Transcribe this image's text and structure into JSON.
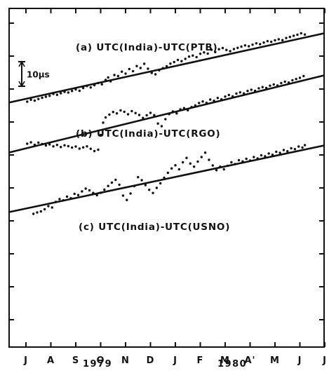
{
  "chart_data": {
    "type": "scatter",
    "x_categories": [
      "J",
      "A",
      "S",
      "O",
      "N",
      "D",
      "J",
      "F",
      "M",
      "A'",
      "M",
      "J",
      "J"
    ],
    "year_labels": [
      "1979",
      "1980"
    ],
    "scale_bar_label": "10μs",
    "scale_bar_value_us": 10,
    "y_unit": "μs",
    "grid": false,
    "series": [
      {
        "name": "(a) UTC(India)-UTC(PTB)",
        "trend_line": {
          "start": 7.5,
          "end": 47.0
        },
        "points": [
          [
            0.05,
            8.0
          ],
          [
            0.2,
            9.1
          ],
          [
            0.35,
            8.6
          ],
          [
            0.5,
            9.5
          ],
          [
            0.65,
            10.2
          ],
          [
            0.8,
            10.8
          ],
          [
            0.95,
            11.3
          ],
          [
            1.1,
            12.4
          ],
          [
            1.25,
            11.9
          ],
          [
            1.4,
            12.8
          ],
          [
            1.55,
            13.6
          ],
          [
            1.7,
            13.2
          ],
          [
            1.85,
            14.1
          ],
          [
            2.0,
            15.0
          ],
          [
            2.15,
            14.2
          ],
          [
            2.3,
            15.8
          ],
          [
            2.45,
            16.9
          ],
          [
            2.6,
            16.1
          ],
          [
            2.75,
            17.4
          ],
          [
            2.9,
            18.6
          ],
          [
            3.05,
            17.9
          ],
          [
            3.2,
            20.4
          ],
          [
            3.3,
            21.8
          ],
          [
            3.4,
            19.6
          ],
          [
            3.55,
            23.2
          ],
          [
            3.7,
            22.6
          ],
          [
            3.85,
            25.1
          ],
          [
            4.0,
            24.0
          ],
          [
            4.15,
            26.6
          ],
          [
            4.3,
            25.4
          ],
          [
            4.45,
            28.3
          ],
          [
            4.6,
            27.2
          ],
          [
            4.75,
            29.6
          ],
          [
            4.9,
            26.8
          ],
          [
            5.05,
            24.4
          ],
          [
            5.2,
            23.6
          ],
          [
            5.35,
            25.9
          ],
          [
            5.5,
            27.1
          ],
          [
            5.65,
            28.2
          ],
          [
            5.8,
            29.7
          ],
          [
            5.95,
            30.6
          ],
          [
            6.1,
            31.8
          ],
          [
            6.25,
            31.1
          ],
          [
            6.4,
            32.4
          ],
          [
            6.55,
            33.7
          ],
          [
            6.7,
            34.3
          ],
          [
            6.85,
            33.4
          ],
          [
            7.0,
            35.3
          ],
          [
            7.15,
            36.1
          ],
          [
            7.3,
            35.4
          ],
          [
            7.45,
            37.6
          ],
          [
            7.6,
            36.3
          ],
          [
            7.75,
            37.9
          ],
          [
            7.9,
            38.6
          ],
          [
            8.05,
            37.5
          ],
          [
            8.2,
            36.8
          ],
          [
            8.35,
            38.0
          ],
          [
            8.5,
            38.7
          ],
          [
            8.65,
            39.4
          ],
          [
            8.8,
            40.1
          ],
          [
            8.95,
            39.6
          ],
          [
            9.1,
            40.5
          ],
          [
            9.25,
            41.3
          ],
          [
            9.4,
            40.8
          ],
          [
            9.55,
            41.7
          ],
          [
            9.7,
            42.5
          ],
          [
            9.85,
            42.1
          ],
          [
            10.0,
            43.0
          ],
          [
            10.15,
            43.6
          ],
          [
            10.3,
            43.1
          ],
          [
            10.45,
            44.3
          ],
          [
            10.6,
            44.9
          ],
          [
            10.75,
            45.6
          ],
          [
            10.9,
            46.2
          ],
          [
            11.05,
            47.0
          ],
          [
            11.2,
            46.3
          ]
        ]
      },
      {
        "name": "(b) UTC(India)-UTC(RGO)",
        "trend_line": {
          "start": -21.0,
          "end": 23.0
        },
        "points": [
          [
            0.05,
            -16.0
          ],
          [
            0.2,
            -15.2
          ],
          [
            0.35,
            -16.6
          ],
          [
            0.5,
            -15.4
          ],
          [
            0.65,
            -16.2
          ],
          [
            0.8,
            -17.0
          ],
          [
            0.95,
            -16.4
          ],
          [
            1.1,
            -17.5
          ],
          [
            1.25,
            -16.7
          ],
          [
            1.4,
            -17.9
          ],
          [
            1.55,
            -16.9
          ],
          [
            1.7,
            -17.4
          ],
          [
            1.85,
            -18.2
          ],
          [
            2.0,
            -17.6
          ],
          [
            2.15,
            -18.8
          ],
          [
            2.3,
            -18.1
          ],
          [
            2.45,
            -17.5
          ],
          [
            2.6,
            -18.9
          ],
          [
            2.75,
            -20.2
          ],
          [
            2.9,
            -19.4
          ],
          [
            3.0,
            -11.0
          ],
          [
            3.1,
            -4.0
          ],
          [
            3.2,
            -1.0
          ],
          [
            3.35,
            0.6
          ],
          [
            3.5,
            2.1
          ],
          [
            3.65,
            1.3
          ],
          [
            3.8,
            3.0
          ],
          [
            3.95,
            2.2
          ],
          [
            4.1,
            0.8
          ],
          [
            4.25,
            2.6
          ],
          [
            4.4,
            1.5
          ],
          [
            4.55,
            0.4
          ],
          [
            4.7,
            -1.3
          ],
          [
            4.85,
            0.2
          ],
          [
            5.0,
            1.6
          ],
          [
            5.15,
            0.3
          ],
          [
            5.3,
            -4.5
          ],
          [
            5.45,
            -6.0
          ],
          [
            5.6,
            -2.0
          ],
          [
            5.75,
            0.9
          ],
          [
            5.9,
            2.4
          ],
          [
            6.05,
            1.3
          ],
          [
            6.2,
            3.6
          ],
          [
            6.35,
            4.3
          ],
          [
            6.5,
            3.1
          ],
          [
            6.65,
            4.9
          ],
          [
            6.8,
            5.8
          ],
          [
            6.95,
            7.2
          ],
          [
            7.1,
            8.1
          ],
          [
            7.25,
            7.3
          ],
          [
            7.4,
            9.2
          ],
          [
            7.55,
            8.5
          ],
          [
            7.7,
            10.1
          ],
          [
            7.85,
            9.3
          ],
          [
            8.0,
            10.9
          ],
          [
            8.15,
            11.8
          ],
          [
            8.3,
            11.0
          ],
          [
            8.45,
            12.6
          ],
          [
            8.6,
            13.3
          ],
          [
            8.75,
            12.7
          ],
          [
            8.9,
            14.1
          ],
          [
            9.05,
            14.8
          ],
          [
            9.2,
            14.2
          ],
          [
            9.35,
            15.6
          ],
          [
            9.5,
            16.3
          ],
          [
            9.65,
            15.8
          ],
          [
            9.8,
            17.1
          ],
          [
            9.95,
            17.8
          ],
          [
            10.1,
            17.2
          ],
          [
            10.25,
            18.6
          ],
          [
            10.4,
            19.4
          ],
          [
            10.55,
            18.9
          ],
          [
            10.7,
            20.2
          ],
          [
            10.85,
            20.9
          ],
          [
            11.0,
            21.6
          ],
          [
            11.15,
            22.6
          ]
        ]
      },
      {
        "name": "(c) UTC(India)-UTC(USNO)",
        "trend_line": {
          "start": -55.0,
          "end": -17.0
        },
        "points": [
          [
            0.3,
            -56.0
          ],
          [
            0.45,
            -55.2
          ],
          [
            0.6,
            -54.6
          ],
          [
            0.75,
            -53.4
          ],
          [
            0.9,
            -51.6
          ],
          [
            1.05,
            -52.4
          ],
          [
            1.2,
            -49.2
          ],
          [
            1.35,
            -47.6
          ],
          [
            1.5,
            -48.3
          ],
          [
            1.65,
            -46.2
          ],
          [
            1.8,
            -47.1
          ],
          [
            1.95,
            -44.6
          ],
          [
            2.1,
            -45.3
          ],
          [
            2.25,
            -43.2
          ],
          [
            2.4,
            -41.6
          ],
          [
            2.55,
            -42.6
          ],
          [
            2.7,
            -44.1
          ],
          [
            2.85,
            -45.4
          ],
          [
            3.0,
            -44.0
          ],
          [
            3.15,
            -42.2
          ],
          [
            3.3,
            -40.1
          ],
          [
            3.45,
            -38.2
          ],
          [
            3.6,
            -36.6
          ],
          [
            3.75,
            -39.4
          ],
          [
            3.9,
            -45.6
          ],
          [
            4.05,
            -48.1
          ],
          [
            4.2,
            -44.4
          ],
          [
            4.35,
            -40.2
          ],
          [
            4.5,
            -35.1
          ],
          [
            4.65,
            -36.8
          ],
          [
            4.8,
            -39.6
          ],
          [
            4.95,
            -42.3
          ],
          [
            5.1,
            -44.1
          ],
          [
            5.25,
            -41.2
          ],
          [
            5.4,
            -38.6
          ],
          [
            5.55,
            -35.4
          ],
          [
            5.7,
            -32.6
          ],
          [
            5.85,
            -30.1
          ],
          [
            6.0,
            -28.3
          ],
          [
            6.15,
            -30.6
          ],
          [
            6.3,
            -26.6
          ],
          [
            6.45,
            -24.1
          ],
          [
            6.6,
            -27.3
          ],
          [
            6.75,
            -29.1
          ],
          [
            6.9,
            -26.2
          ],
          [
            7.05,
            -23.6
          ],
          [
            7.2,
            -21.1
          ],
          [
            7.35,
            -25.2
          ],
          [
            7.5,
            -28.4
          ],
          [
            7.65,
            -31.1
          ],
          [
            7.8,
            -29.1
          ],
          [
            7.95,
            -30.6
          ],
          [
            8.1,
            -28.6
          ],
          [
            8.25,
            -26.6
          ],
          [
            8.4,
            -27.6
          ],
          [
            8.55,
            -25.4
          ],
          [
            8.7,
            -26.1
          ],
          [
            8.85,
            -24.6
          ],
          [
            9.0,
            -25.6
          ],
          [
            9.15,
            -23.6
          ],
          [
            9.3,
            -24.4
          ],
          [
            9.45,
            -22.6
          ],
          [
            9.6,
            -23.2
          ],
          [
            9.75,
            -21.6
          ],
          [
            9.9,
            -22.3
          ],
          [
            10.05,
            -20.6
          ],
          [
            10.2,
            -21.2
          ],
          [
            10.35,
            -19.6
          ],
          [
            10.5,
            -20.3
          ],
          [
            10.65,
            -18.6
          ],
          [
            10.8,
            -19.1
          ],
          [
            10.95,
            -17.6
          ],
          [
            11.1,
            -18.2
          ],
          [
            11.2,
            -16.8
          ]
        ]
      }
    ]
  }
}
